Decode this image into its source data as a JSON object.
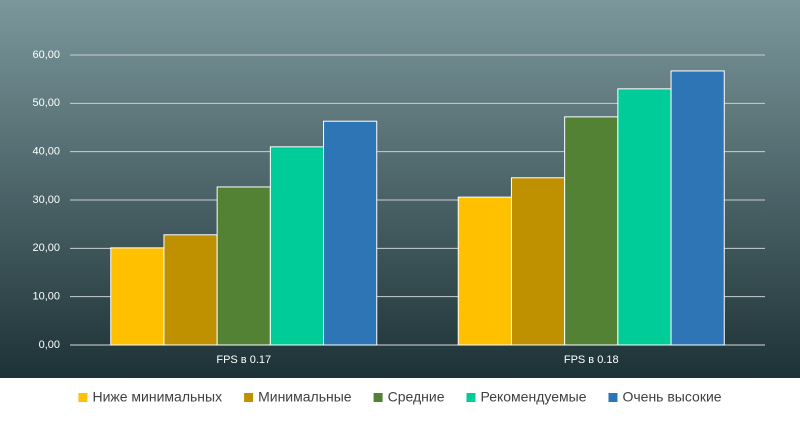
{
  "chart_data": {
    "type": "bar",
    "categories": [
      "FPS в 0.17",
      "FPS в 0.18"
    ],
    "series": [
      {
        "name": "Ниже минимальных",
        "color": "#ffc000",
        "values": [
          20.1,
          30.6
        ]
      },
      {
        "name": "Минимальные",
        "color": "#bf9000",
        "values": [
          22.8,
          34.6
        ]
      },
      {
        "name": "Средние",
        "color": "#548235",
        "values": [
          32.7,
          47.2
        ]
      },
      {
        "name": "Рекомендуемые",
        "color": "#00cc99",
        "values": [
          41.0,
          53.0
        ]
      },
      {
        "name": "Очень высокие",
        "color": "#2e75b6",
        "values": [
          46.3,
          56.7
        ]
      }
    ],
    "ylim": [
      0,
      60
    ],
    "yticks": [
      {
        "value": 0,
        "label": "0,00"
      },
      {
        "value": 10,
        "label": "10,00"
      },
      {
        "value": 20,
        "label": "20,00"
      },
      {
        "value": 30,
        "label": "30,00"
      },
      {
        "value": 40,
        "label": "40,00"
      },
      {
        "value": 50,
        "label": "50,00"
      },
      {
        "value": 60,
        "label": "60,00"
      }
    ],
    "grid": true,
    "legend": "bottom"
  }
}
